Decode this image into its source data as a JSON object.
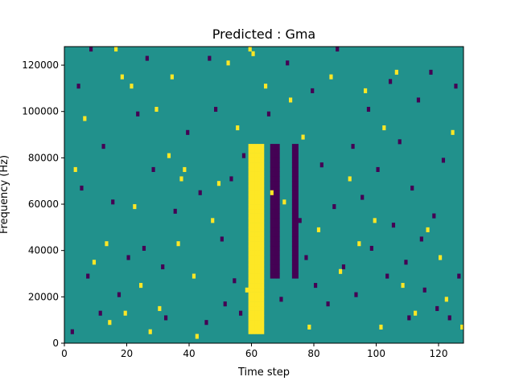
{
  "chart_data": {
    "type": "heatmap",
    "title": "Predicted : Gma",
    "xlabel": "Time step",
    "ylabel": "Frequency (Hz)",
    "xlim": [
      0,
      128
    ],
    "ylim": [
      0,
      128000
    ],
    "x_ticks": [
      0,
      20,
      40,
      60,
      80,
      100,
      120
    ],
    "y_ticks": [
      0,
      20000,
      40000,
      60000,
      80000,
      100000,
      120000
    ],
    "x_tick_labels": [
      "0",
      "20",
      "40",
      "60",
      "80",
      "100",
      "120"
    ],
    "y_tick_labels": [
      "0",
      "20000",
      "40000",
      "60000",
      "80000",
      "100000",
      "120000"
    ],
    "grid": false,
    "colormap": "viridis",
    "levels": {
      "low": -1,
      "mid": 0,
      "high": 1
    },
    "colors": {
      "low": "#440154",
      "mid": "#21918c",
      "high": "#fde725"
    },
    "dominant_value": 0,
    "time_steps": 128,
    "frequency_bins": 64,
    "bin_width_hz": 2000,
    "dense_bands": [
      {
        "value": 1,
        "x_range": [
          59,
          63
        ],
        "freq_range_hz": [
          4000,
          86000
        ]
      },
      {
        "value": -1,
        "x_range": [
          66,
          68
        ],
        "freq_range_hz": [
          28000,
          86000
        ]
      },
      {
        "value": -1,
        "x_range": [
          73,
          74
        ],
        "freq_range_hz": [
          28000,
          86000
        ]
      }
    ],
    "sparse_points": {
      "high": [
        [
          3,
          74000
        ],
        [
          6,
          96000
        ],
        [
          9,
          34000
        ],
        [
          13,
          42000
        ],
        [
          14,
          8000
        ],
        [
          16,
          126000
        ],
        [
          18,
          114000
        ],
        [
          19,
          12000
        ],
        [
          21,
          110000
        ],
        [
          22,
          58000
        ],
        [
          24,
          24000
        ],
        [
          27,
          4000
        ],
        [
          29,
          100000
        ],
        [
          30,
          14000
        ],
        [
          33,
          80000
        ],
        [
          34,
          114000
        ],
        [
          36,
          42000
        ],
        [
          37,
          70000
        ],
        [
          38,
          74000
        ],
        [
          41,
          28000
        ],
        [
          42,
          2000
        ],
        [
          47,
          52000
        ],
        [
          49,
          68000
        ],
        [
          52,
          120000
        ],
        [
          55,
          92000
        ],
        [
          58,
          22000
        ],
        [
          59,
          126000
        ],
        [
          60,
          124000
        ],
        [
          64,
          110000
        ],
        [
          66,
          64000
        ],
        [
          70,
          60000
        ],
        [
          72,
          104000
        ],
        [
          76,
          88000
        ],
        [
          78,
          6000
        ],
        [
          81,
          48000
        ],
        [
          85,
          114000
        ],
        [
          88,
          30000
        ],
        [
          91,
          70000
        ],
        [
          94,
          42000
        ],
        [
          96,
          108000
        ],
        [
          99,
          52000
        ],
        [
          101,
          6000
        ],
        [
          102,
          92000
        ],
        [
          106,
          116000
        ],
        [
          108,
          24000
        ],
        [
          112,
          12000
        ],
        [
          116,
          48000
        ],
        [
          120,
          36000
        ],
        [
          122,
          18000
        ],
        [
          124,
          90000
        ],
        [
          127,
          6000
        ]
      ],
      "low": [
        [
          2,
          4000
        ],
        [
          4,
          110000
        ],
        [
          5,
          66000
        ],
        [
          7,
          28000
        ],
        [
          8,
          126000
        ],
        [
          11,
          12000
        ],
        [
          12,
          84000
        ],
        [
          15,
          60000
        ],
        [
          17,
          20000
        ],
        [
          20,
          36000
        ],
        [
          23,
          98000
        ],
        [
          25,
          40000
        ],
        [
          26,
          122000
        ],
        [
          28,
          74000
        ],
        [
          31,
          32000
        ],
        [
          32,
          10000
        ],
        [
          35,
          56000
        ],
        [
          39,
          90000
        ],
        [
          43,
          64000
        ],
        [
          45,
          8000
        ],
        [
          46,
          122000
        ],
        [
          48,
          100000
        ],
        [
          50,
          44000
        ],
        [
          51,
          16000
        ],
        [
          53,
          70000
        ],
        [
          54,
          26000
        ],
        [
          56,
          12000
        ],
        [
          57,
          80000
        ],
        [
          65,
          98000
        ],
        [
          69,
          18000
        ],
        [
          71,
          120000
        ],
        [
          75,
          52000
        ],
        [
          77,
          36000
        ],
        [
          79,
          108000
        ],
        [
          80,
          24000
        ],
        [
          82,
          76000
        ],
        [
          84,
          16000
        ],
        [
          86,
          58000
        ],
        [
          87,
          126000
        ],
        [
          89,
          32000
        ],
        [
          92,
          84000
        ],
        [
          93,
          20000
        ],
        [
          95,
          62000
        ],
        [
          97,
          100000
        ],
        [
          98,
          40000
        ],
        [
          100,
          74000
        ],
        [
          103,
          28000
        ],
        [
          104,
          112000
        ],
        [
          105,
          50000
        ],
        [
          107,
          86000
        ],
        [
          109,
          34000
        ],
        [
          110,
          10000
        ],
        [
          111,
          66000
        ],
        [
          113,
          104000
        ],
        [
          114,
          44000
        ],
        [
          115,
          22000
        ],
        [
          117,
          116000
        ],
        [
          118,
          54000
        ],
        [
          119,
          14000
        ],
        [
          121,
          78000
        ],
        [
          123,
          10000
        ],
        [
          125,
          110000
        ],
        [
          126,
          28000
        ]
      ]
    }
  }
}
